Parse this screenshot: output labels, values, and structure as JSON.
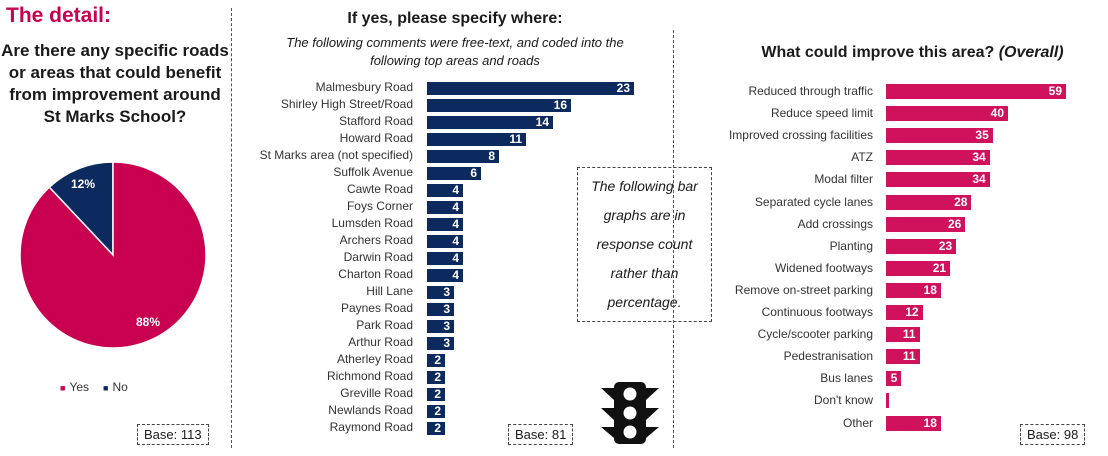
{
  "header": {
    "title": "The detail:"
  },
  "pie_panel": {
    "question": "Are there any specific roads or areas that could benefit from improvement around St Marks School?",
    "legend": [
      {
        "label": "Yes",
        "color": "#c8004f"
      },
      {
        "label": "No",
        "color": "#0d2a5e"
      }
    ],
    "base": "Base: 113"
  },
  "middle_panel": {
    "title": "If yes, please specify where:",
    "subtitle_line1": "The following comments were free-text, and coded into the",
    "subtitle_line2": "following top areas and roads",
    "note": "The following bar graphs are in response count rather than percentage.",
    "base": "Base: 81",
    "icon": "traffic-light-icon"
  },
  "right_panel": {
    "title_main": "What could improve this area? ",
    "title_italic": "(Overall)",
    "base": "Base: 98"
  },
  "chart_data": [
    {
      "type": "pie",
      "categories": [
        "Yes",
        "No"
      ],
      "values": [
        88,
        12
      ],
      "value_labels": [
        "88%",
        "12%"
      ],
      "colors": [
        "#c8004f",
        "#0d2a5e"
      ]
    },
    {
      "type": "bar",
      "orientation": "horizontal",
      "title": "If yes, please specify where:",
      "color": "#0d2a5e",
      "categories": [
        "Malmesbury Road",
        "Shirley High Street/Road",
        "Stafford Road",
        "Howard Road",
        "St Marks area (not specified)",
        "Suffolk Avenue",
        "Cawte Road",
        "Foys Corner",
        "Lumsden Road",
        "Archers Road",
        "Darwin Road",
        "Charton Road",
        "Hill Lane",
        "Paynes Road",
        "Park Road",
        "Arthur Road",
        "Atherley Road",
        "Richmond Road",
        "Greville Road",
        "Newlands Road",
        "Raymond Road"
      ],
      "values": [
        23,
        16,
        14,
        11,
        8,
        6,
        4,
        4,
        4,
        4,
        4,
        4,
        3,
        3,
        3,
        3,
        2,
        2,
        2,
        2,
        2
      ]
    },
    {
      "type": "bar",
      "orientation": "horizontal",
      "title": "What could improve this area? (Overall)",
      "color": "#d0115c",
      "categories": [
        "Reduced through traffic",
        "Reduce speed limit",
        "Improved crossing facilities",
        "ATZ",
        "Modal filter",
        "Separated cycle lanes",
        "Add crossings",
        "Planting",
        "Widened footways",
        "Remove on-street parking",
        "Continuous footways",
        "Cycle/scooter parking",
        "Pedestranisation",
        "Bus lanes",
        "Don't know",
        "Other"
      ],
      "values": [
        59,
        40,
        35,
        34,
        34,
        28,
        26,
        23,
        21,
        18,
        12,
        11,
        11,
        5,
        1,
        18
      ],
      "value_labels": [
        "59",
        "40",
        "35",
        "34",
        "34",
        "28",
        "26",
        "23",
        "21",
        "18",
        "12",
        "11",
        "11",
        "5",
        "",
        "18"
      ]
    }
  ]
}
